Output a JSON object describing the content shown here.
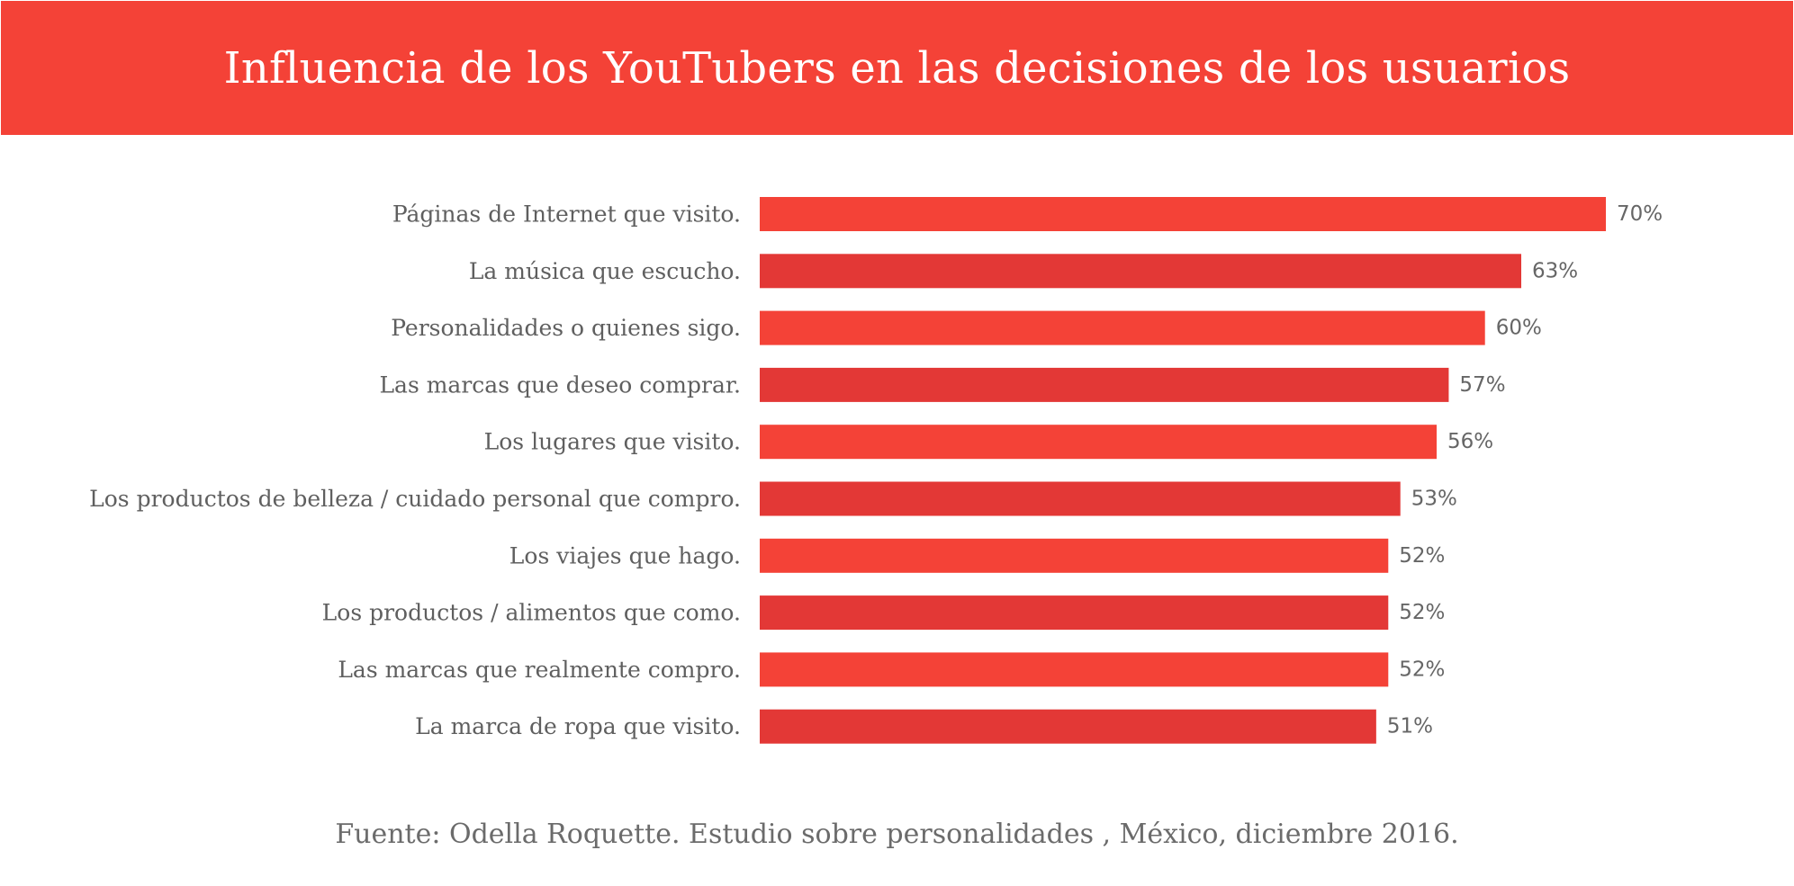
{
  "header": {
    "title": "Influencia de los YouTubers en las decisiones de los usuarios"
  },
  "footer": {
    "source": "Fuente: Odella Roquette. Estudio sobre personalidades , México, diciembre 2016."
  },
  "colors": {
    "banner": "#f44237",
    "bar_primary": "#f44237",
    "bar_alternate": "#e33836",
    "category_text": "#5f5f5f",
    "value_text": "#666666"
  },
  "chart_data": {
    "type": "bar",
    "orientation": "horizontal",
    "title": "Influencia de los YouTubers en las decisiones de los usuarios",
    "xlabel": "",
    "ylabel": "",
    "value_format": "percent",
    "xlim": [
      0,
      70
    ],
    "grid": false,
    "legend": "none",
    "categories": [
      "Páginas de Internet que visito.",
      "La música que escucho.",
      "Personalidades o quienes sigo.",
      "Las marcas que deseo comprar.",
      "Los lugares que visito.",
      "Los productos de belleza / cuidado personal que compro.",
      "Los viajes que hago.",
      "Los productos / alimentos que como.",
      "Las marcas que realmente compro.",
      "La marca de ropa que visito."
    ],
    "values": [
      70,
      63,
      60,
      57,
      56,
      53,
      52,
      52,
      52,
      51
    ],
    "value_labels": [
      "70%",
      "63%",
      "60%",
      "57%",
      "56%",
      "53%",
      "52%",
      "52%",
      "52%",
      "51%"
    ]
  }
}
